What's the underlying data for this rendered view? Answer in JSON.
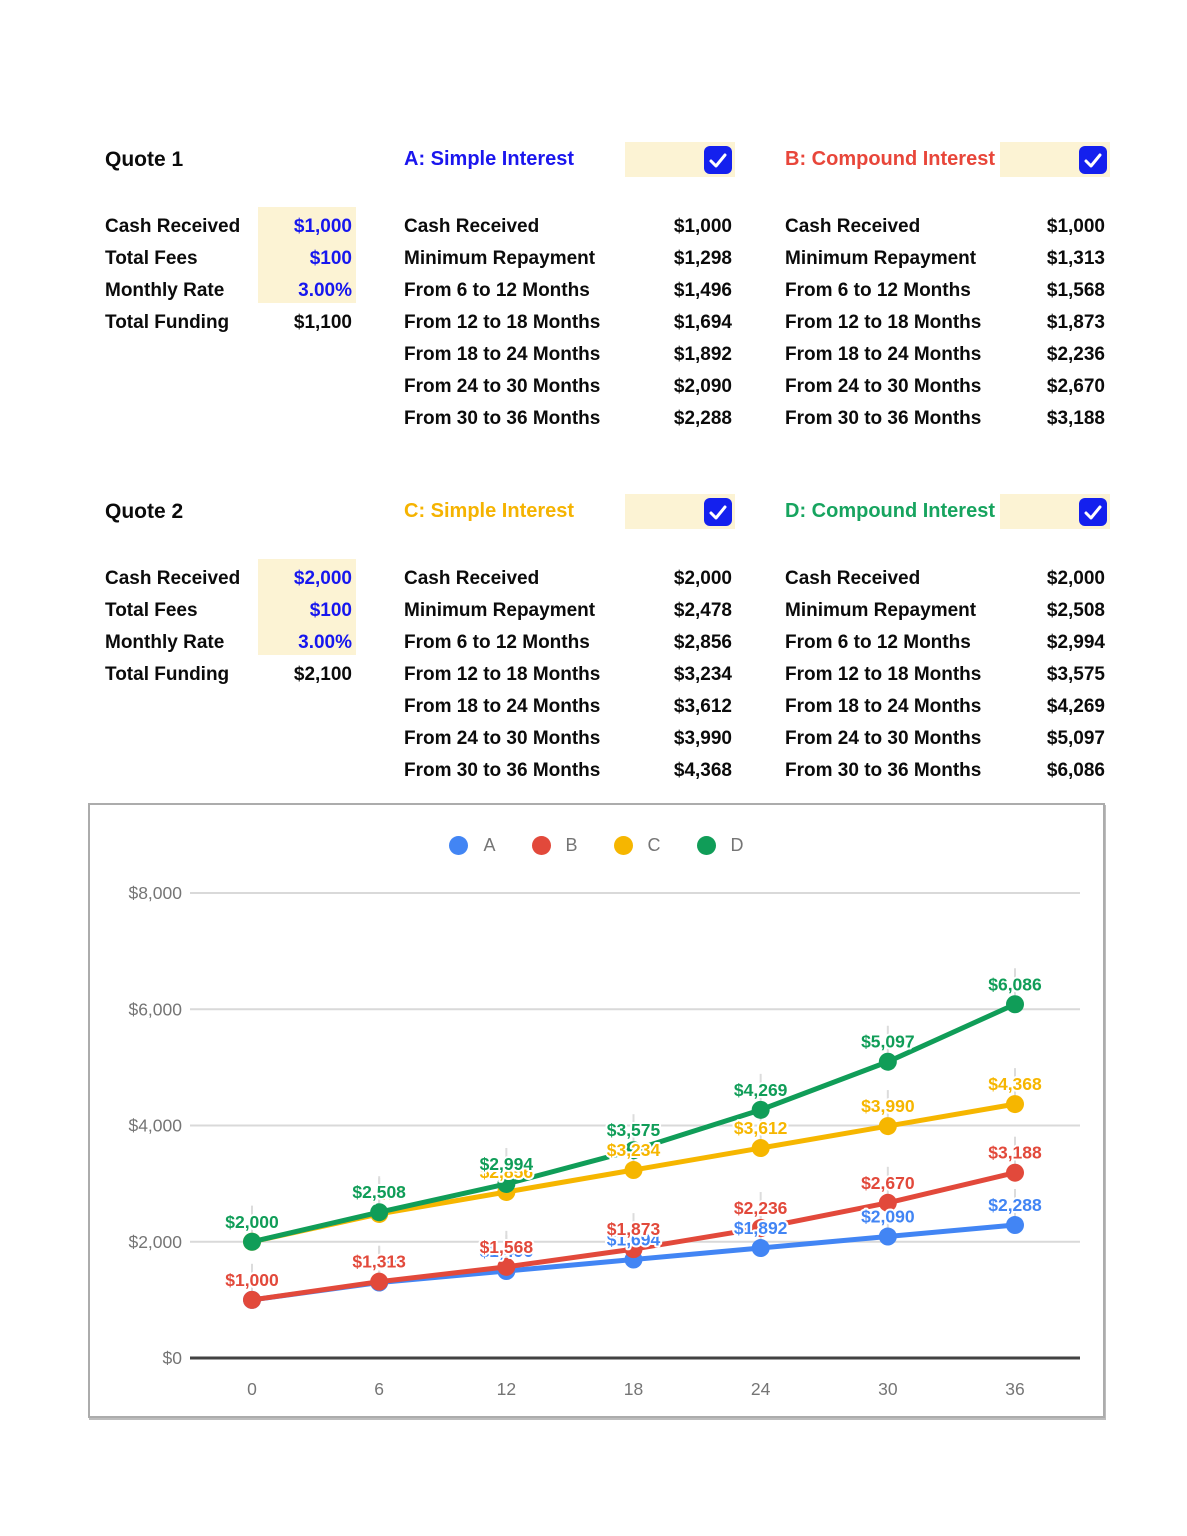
{
  "colors": {
    "highlight_bg": "#FCF3D4",
    "input_text": "#1717EE",
    "checkbox_blue": "#1420EE",
    "grid_line": "#D9D9D9",
    "zero_axis": "#424242",
    "tick_text": "#757575",
    "chart_border": "#ACACAC"
  },
  "quotes": [
    {
      "title": "Quote 1",
      "fields": [
        {
          "label": "Cash Received",
          "value": "$1,000",
          "input": true
        },
        {
          "label": "Total Fees",
          "value": "$100",
          "input": true
        },
        {
          "label": "Monthly Rate",
          "value": "3.00%",
          "input": true
        },
        {
          "label": "Total Funding",
          "value": "$1,100",
          "input": false
        }
      ],
      "plans": [
        {
          "id": "A",
          "title": "A: Simple Interest",
          "title_color": "#1B16EE",
          "checked": true,
          "rows": [
            {
              "label": "Cash Received",
              "value": "$1,000"
            },
            {
              "label": "Minimum Repayment",
              "value": "$1,298"
            },
            {
              "label": "From 6 to 12 Months",
              "value": "$1,496"
            },
            {
              "label": "From 12 to 18 Months",
              "value": "$1,694"
            },
            {
              "label": "From 18 to 24 Months",
              "value": "$1,892"
            },
            {
              "label": "From 24 to 30 Months",
              "value": "$2,090"
            },
            {
              "label": "From 30 to 36 Months",
              "value": "$2,288"
            }
          ]
        },
        {
          "id": "B",
          "title": "B: Compound Interest",
          "title_color": "#E8463A",
          "checked": true,
          "rows": [
            {
              "label": "Cash Received",
              "value": "$1,000"
            },
            {
              "label": "Minimum Repayment",
              "value": "$1,313"
            },
            {
              "label": "From 6 to 12 Months",
              "value": "$1,568"
            },
            {
              "label": "From 12 to 18 Months",
              "value": "$1,873"
            },
            {
              "label": "From 18 to 24 Months",
              "value": "$2,236"
            },
            {
              "label": "From 24 to 30 Months",
              "value": "$2,670"
            },
            {
              "label": "From 30 to 36 Months",
              "value": "$3,188"
            }
          ]
        }
      ]
    },
    {
      "title": "Quote 2",
      "fields": [
        {
          "label": "Cash Received",
          "value": "$2,000",
          "input": true
        },
        {
          "label": "Total Fees",
          "value": "$100",
          "input": true
        },
        {
          "label": "Monthly Rate",
          "value": "3.00%",
          "input": true
        },
        {
          "label": "Total Funding",
          "value": "$2,100",
          "input": false
        }
      ],
      "plans": [
        {
          "id": "C",
          "title": "C: Simple Interest",
          "title_color": "#F5B301",
          "checked": true,
          "rows": [
            {
              "label": "Cash Received",
              "value": "$2,000"
            },
            {
              "label": "Minimum Repayment",
              "value": "$2,478"
            },
            {
              "label": "From 6 to 12 Months",
              "value": "$2,856"
            },
            {
              "label": "From 12 to 18 Months",
              "value": "$3,234"
            },
            {
              "label": "From 18 to 24 Months",
              "value": "$3,612"
            },
            {
              "label": "From 24 to 30 Months",
              "value": "$3,990"
            },
            {
              "label": "From 30 to 36 Months",
              "value": "$4,368"
            }
          ]
        },
        {
          "id": "D",
          "title": "D: Compound Interest",
          "title_color": "#17A45F",
          "checked": true,
          "rows": [
            {
              "label": "Cash Received",
              "value": "$2,000"
            },
            {
              "label": "Minimum Repayment",
              "value": "$2,508"
            },
            {
              "label": "From 6 to 12 Months",
              "value": "$2,994"
            },
            {
              "label": "From 12 to 18 Months",
              "value": "$3,575"
            },
            {
              "label": "From 18 to 24 Months",
              "value": "$4,269"
            },
            {
              "label": "From 24 to 30 Months",
              "value": "$5,097"
            },
            {
              "label": "From 30 to 36 Months",
              "value": "$6,086"
            }
          ]
        }
      ]
    }
  ],
  "chart_data": {
    "type": "line",
    "x": [
      0,
      6,
      12,
      18,
      24,
      30,
      36
    ],
    "x_tick_labels": [
      "0",
      "6",
      "12",
      "18",
      "24",
      "30",
      "36"
    ],
    "y_tick_labels": [
      "$0",
      "$2,000",
      "$4,000",
      "$6,000",
      "$8,000"
    ],
    "y_tick_values": [
      0,
      2000,
      4000,
      6000,
      8000
    ],
    "ylim": [
      0,
      8000
    ],
    "grid": "horizontal",
    "legend_position": "top",
    "point_label_format": "currency",
    "series": [
      {
        "name": "A",
        "color": "#4285F4",
        "values": [
          1000,
          1298,
          1496,
          1694,
          1892,
          2090,
          2288
        ]
      },
      {
        "name": "B",
        "color": "#E2493B",
        "values": [
          1000,
          1313,
          1568,
          1873,
          2236,
          2670,
          3188
        ]
      },
      {
        "name": "C",
        "color": "#F6B600",
        "values": [
          2000,
          2478,
          2856,
          3234,
          3612,
          3990,
          4368
        ]
      },
      {
        "name": "D",
        "color": "#109D58",
        "values": [
          2000,
          2508,
          2994,
          3575,
          4269,
          5097,
          6086
        ]
      }
    ]
  }
}
